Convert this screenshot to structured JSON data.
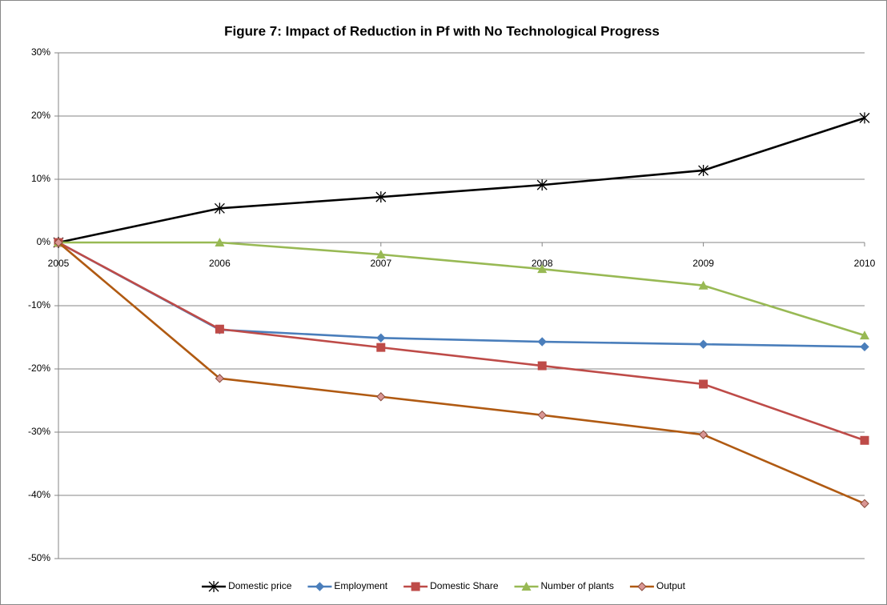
{
  "chart_data": {
    "type": "line",
    "title": "Figure 7:  Impact of Reduction in Pf with No Technological Progress",
    "categories": [
      "2005",
      "2006",
      "2007",
      "2008",
      "2009",
      "2010"
    ],
    "ylim": [
      -50,
      30
    ],
    "yticks": [
      {
        "value": -50,
        "label": "-50%"
      },
      {
        "value": -40,
        "label": "-40%"
      },
      {
        "value": -30,
        "label": "-30%"
      },
      {
        "value": -20,
        "label": "-20%"
      },
      {
        "value": -10,
        "label": "-10%"
      },
      {
        "value": 0,
        "label": "0%"
      },
      {
        "value": 10,
        "label": "10%"
      },
      {
        "value": 20,
        "label": "20%"
      },
      {
        "value": 30,
        "label": "30%"
      }
    ],
    "grid": true,
    "legend": "bottom",
    "series": [
      {
        "name": "Domestic price",
        "color": "#000000",
        "marker": "star",
        "values": [
          0,
          5.4,
          7.2,
          9.1,
          11.4,
          19.7
        ]
      },
      {
        "name": "Employment",
        "color": "#4a7ebb",
        "marker": "diamond",
        "values": [
          0,
          -13.8,
          -15.1,
          -15.7,
          -16.1,
          -16.5
        ]
      },
      {
        "name": "Domestic Share",
        "color": "#be4b48",
        "marker": "square",
        "values": [
          0,
          -13.7,
          -16.6,
          -19.5,
          -22.4,
          -31.3
        ]
      },
      {
        "name": "Number of plants",
        "color": "#98b954",
        "marker": "triangle",
        "values": [
          0,
          0,
          -1.9,
          -4.2,
          -6.8,
          -14.7
        ]
      },
      {
        "name": "Output",
        "color": "#b05a12",
        "marker": "diamond-light",
        "values": [
          0,
          -21.5,
          -24.4,
          -27.3,
          -30.4,
          -41.3
        ]
      }
    ]
  }
}
